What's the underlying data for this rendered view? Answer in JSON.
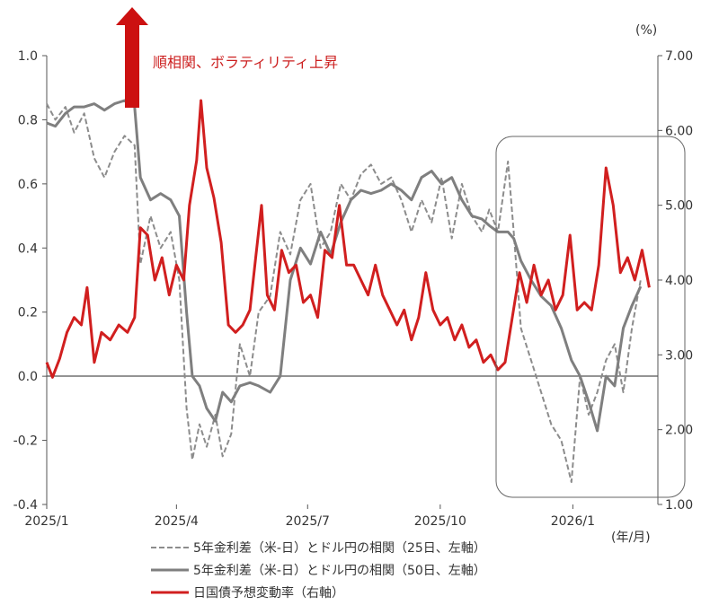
{
  "chart_data": {
    "type": "line",
    "x_ticks": [
      "2025/1",
      "2025/4",
      "2025/7",
      "2025/10",
      "2026/1"
    ],
    "x_unit_label": "(年/月)",
    "y_left": {
      "ticks": [
        "1.0",
        "0.8",
        "0.6",
        "0.4",
        "0.2",
        "0.0",
        "-0.2",
        "-0.4"
      ],
      "range": [
        -0.4,
        1.0
      ]
    },
    "y_right": {
      "unit_label": "(%)",
      "ticks": [
        "7.00",
        "6.00",
        "5.00",
        "4.00",
        "3.00",
        "2.00",
        "1.00"
      ],
      "range": [
        1.0,
        7.0
      ]
    },
    "annotation": "順相関、ボラティリティ上昇",
    "colors": {
      "corr25": "#8c8c8c",
      "corr50": "#7f7f7f",
      "vol": "#d11f1f",
      "arrow": "#cc1111",
      "axis": "#555555"
    },
    "series": [
      {
        "name": "5年金利差（米-日）とドル円の相関（25日、左軸）",
        "axis": "left",
        "style": "dashed",
        "points": [
          [
            "2025-01-01",
            0.85
          ],
          [
            "2025-01-07",
            0.8
          ],
          [
            "2025-01-14",
            0.84
          ],
          [
            "2025-01-20",
            0.76
          ],
          [
            "2025-01-27",
            0.82
          ],
          [
            "2025-02-03",
            0.68
          ],
          [
            "2025-02-10",
            0.62
          ],
          [
            "2025-02-17",
            0.7
          ],
          [
            "2025-02-24",
            0.75
          ],
          [
            "2025-03-03",
            0.72
          ],
          [
            "2025-03-07",
            0.35
          ],
          [
            "2025-03-14",
            0.5
          ],
          [
            "2025-03-21",
            0.4
          ],
          [
            "2025-03-28",
            0.45
          ],
          [
            "2025-04-03",
            0.3
          ],
          [
            "2025-04-08",
            -0.1
          ],
          [
            "2025-04-12",
            -0.26
          ],
          [
            "2025-04-17",
            -0.15
          ],
          [
            "2025-04-22",
            -0.22
          ],
          [
            "2025-04-28",
            -0.12
          ],
          [
            "2025-05-03",
            -0.25
          ],
          [
            "2025-05-09",
            -0.18
          ],
          [
            "2025-05-15",
            0.1
          ],
          [
            "2025-05-22",
            0.0
          ],
          [
            "2025-05-28",
            0.2
          ],
          [
            "2025-06-05",
            0.25
          ],
          [
            "2025-06-12",
            0.45
          ],
          [
            "2025-06-19",
            0.38
          ],
          [
            "2025-06-26",
            0.55
          ],
          [
            "2025-07-03",
            0.6
          ],
          [
            "2025-07-10",
            0.4
          ],
          [
            "2025-07-17",
            0.45
          ],
          [
            "2025-07-24",
            0.6
          ],
          [
            "2025-07-31",
            0.55
          ],
          [
            "2025-08-07",
            0.63
          ],
          [
            "2025-08-14",
            0.66
          ],
          [
            "2025-08-21",
            0.6
          ],
          [
            "2025-08-28",
            0.62
          ],
          [
            "2025-09-04",
            0.55
          ],
          [
            "2025-09-11",
            0.45
          ],
          [
            "2025-09-18",
            0.55
          ],
          [
            "2025-09-25",
            0.48
          ],
          [
            "2025-10-02",
            0.62
          ],
          [
            "2025-10-09",
            0.43
          ],
          [
            "2025-10-16",
            0.6
          ],
          [
            "2025-10-23",
            0.5
          ],
          [
            "2025-10-30",
            0.45
          ],
          [
            "2025-11-04",
            0.52
          ],
          [
            "2025-11-10",
            0.45
          ],
          [
            "2025-11-17",
            0.67
          ],
          [
            "2025-11-21",
            0.45
          ],
          [
            "2025-11-26",
            0.15
          ],
          [
            "2025-12-03",
            0.05
          ],
          [
            "2025-12-10",
            -0.05
          ],
          [
            "2025-12-17",
            -0.15
          ],
          [
            "2025-12-24",
            -0.2
          ],
          [
            "2025-12-31",
            -0.33
          ],
          [
            "2026-01-06",
            0.0
          ],
          [
            "2026-01-12",
            -0.12
          ],
          [
            "2026-01-18",
            -0.05
          ],
          [
            "2026-01-24",
            0.05
          ],
          [
            "2026-01-30",
            0.1
          ],
          [
            "2026-02-05",
            -0.05
          ],
          [
            "2026-02-11",
            0.15
          ],
          [
            "2026-02-17",
            0.3
          ]
        ]
      },
      {
        "name": "5年金利差（米-日）とドル円の相関（50日、左軸）",
        "axis": "left",
        "style": "solid",
        "points": [
          [
            "2025-01-01",
            0.79
          ],
          [
            "2025-01-07",
            0.78
          ],
          [
            "2025-01-14",
            0.82
          ],
          [
            "2025-01-20",
            0.84
          ],
          [
            "2025-01-27",
            0.84
          ],
          [
            "2025-02-03",
            0.85
          ],
          [
            "2025-02-10",
            0.83
          ],
          [
            "2025-02-17",
            0.85
          ],
          [
            "2025-02-24",
            0.86
          ],
          [
            "2025-03-03",
            0.84
          ],
          [
            "2025-03-07",
            0.62
          ],
          [
            "2025-03-14",
            0.55
          ],
          [
            "2025-03-21",
            0.57
          ],
          [
            "2025-03-28",
            0.55
          ],
          [
            "2025-04-03",
            0.5
          ],
          [
            "2025-04-08",
            0.2
          ],
          [
            "2025-04-12",
            0.0
          ],
          [
            "2025-04-17",
            -0.03
          ],
          [
            "2025-04-22",
            -0.1
          ],
          [
            "2025-04-28",
            -0.14
          ],
          [
            "2025-05-03",
            -0.05
          ],
          [
            "2025-05-09",
            -0.08
          ],
          [
            "2025-05-15",
            -0.03
          ],
          [
            "2025-05-22",
            -0.02
          ],
          [
            "2025-05-28",
            -0.03
          ],
          [
            "2025-06-05",
            -0.05
          ],
          [
            "2025-06-12",
            0.0
          ],
          [
            "2025-06-19",
            0.3
          ],
          [
            "2025-06-26",
            0.4
          ],
          [
            "2025-07-03",
            0.35
          ],
          [
            "2025-07-10",
            0.45
          ],
          [
            "2025-07-17",
            0.38
          ],
          [
            "2025-07-24",
            0.48
          ],
          [
            "2025-07-31",
            0.55
          ],
          [
            "2025-08-07",
            0.58
          ],
          [
            "2025-08-14",
            0.57
          ],
          [
            "2025-08-21",
            0.58
          ],
          [
            "2025-08-28",
            0.6
          ],
          [
            "2025-09-04",
            0.58
          ],
          [
            "2025-09-11",
            0.55
          ],
          [
            "2025-09-18",
            0.62
          ],
          [
            "2025-09-25",
            0.64
          ],
          [
            "2025-10-02",
            0.6
          ],
          [
            "2025-10-09",
            0.62
          ],
          [
            "2025-10-16",
            0.55
          ],
          [
            "2025-10-23",
            0.5
          ],
          [
            "2025-10-30",
            0.49
          ],
          [
            "2025-11-04",
            0.47
          ],
          [
            "2025-11-10",
            0.45
          ],
          [
            "2025-11-17",
            0.45
          ],
          [
            "2025-11-21",
            0.43
          ],
          [
            "2025-11-26",
            0.36
          ],
          [
            "2025-12-03",
            0.3
          ],
          [
            "2025-12-10",
            0.25
          ],
          [
            "2025-12-17",
            0.22
          ],
          [
            "2025-12-24",
            0.15
          ],
          [
            "2025-12-31",
            0.05
          ],
          [
            "2026-01-06",
            0.0
          ],
          [
            "2026-01-12",
            -0.08
          ],
          [
            "2026-01-18",
            -0.17
          ],
          [
            "2026-01-24",
            0.0
          ],
          [
            "2026-01-30",
            -0.03
          ],
          [
            "2026-02-05",
            0.15
          ],
          [
            "2026-02-11",
            0.22
          ],
          [
            "2026-02-17",
            0.28
          ]
        ]
      },
      {
        "name": "日国債予想変動率（右軸）",
        "axis": "right",
        "style": "solid",
        "points": [
          [
            "2025-01-01",
            2.9
          ],
          [
            "2025-01-05",
            2.7
          ],
          [
            "2025-01-10",
            2.95
          ],
          [
            "2025-01-15",
            3.3
          ],
          [
            "2025-01-20",
            3.5
          ],
          [
            "2025-01-25",
            3.4
          ],
          [
            "2025-01-29",
            3.9
          ],
          [
            "2025-02-03",
            2.9
          ],
          [
            "2025-02-08",
            3.3
          ],
          [
            "2025-02-14",
            3.2
          ],
          [
            "2025-02-20",
            3.4
          ],
          [
            "2025-02-26",
            3.3
          ],
          [
            "2025-03-03",
            3.5
          ],
          [
            "2025-03-07",
            4.7
          ],
          [
            "2025-03-12",
            4.6
          ],
          [
            "2025-03-17",
            4.0
          ],
          [
            "2025-03-22",
            4.3
          ],
          [
            "2025-03-27",
            3.8
          ],
          [
            "2025-04-01",
            4.2
          ],
          [
            "2025-04-06",
            4.0
          ],
          [
            "2025-04-10",
            5.0
          ],
          [
            "2025-04-15",
            5.6
          ],
          [
            "2025-04-18",
            6.4
          ],
          [
            "2025-04-22",
            5.5
          ],
          [
            "2025-04-27",
            5.1
          ],
          [
            "2025-05-02",
            4.5
          ],
          [
            "2025-05-07",
            3.4
          ],
          [
            "2025-05-12",
            3.3
          ],
          [
            "2025-05-17",
            3.4
          ],
          [
            "2025-05-22",
            3.6
          ],
          [
            "2025-05-26",
            4.3
          ],
          [
            "2025-05-30",
            5.0
          ],
          [
            "2025-06-03",
            3.8
          ],
          [
            "2025-06-08",
            3.6
          ],
          [
            "2025-06-13",
            4.4
          ],
          [
            "2025-06-18",
            4.1
          ],
          [
            "2025-06-23",
            4.2
          ],
          [
            "2025-06-28",
            3.7
          ],
          [
            "2025-07-03",
            3.8
          ],
          [
            "2025-07-08",
            3.5
          ],
          [
            "2025-07-13",
            4.4
          ],
          [
            "2025-07-18",
            4.3
          ],
          [
            "2025-07-23",
            5.0
          ],
          [
            "2025-07-28",
            4.2
          ],
          [
            "2025-08-02",
            4.2
          ],
          [
            "2025-08-07",
            4.0
          ],
          [
            "2025-08-12",
            3.8
          ],
          [
            "2025-08-17",
            4.2
          ],
          [
            "2025-08-22",
            3.8
          ],
          [
            "2025-08-27",
            3.6
          ],
          [
            "2025-09-01",
            3.4
          ],
          [
            "2025-09-06",
            3.6
          ],
          [
            "2025-09-11",
            3.2
          ],
          [
            "2025-09-16",
            3.5
          ],
          [
            "2025-09-21",
            4.1
          ],
          [
            "2025-09-26",
            3.6
          ],
          [
            "2025-10-01",
            3.4
          ],
          [
            "2025-10-06",
            3.5
          ],
          [
            "2025-10-11",
            3.2
          ],
          [
            "2025-10-16",
            3.4
          ],
          [
            "2025-10-21",
            3.1
          ],
          [
            "2025-10-26",
            3.2
          ],
          [
            "2025-10-31",
            2.9
          ],
          [
            "2025-11-05",
            3.0
          ],
          [
            "2025-11-10",
            2.8
          ],
          [
            "2025-11-15",
            2.9
          ],
          [
            "2025-11-20",
            3.5
          ],
          [
            "2025-11-25",
            4.1
          ],
          [
            "2025-11-30",
            3.7
          ],
          [
            "2025-12-05",
            4.2
          ],
          [
            "2025-12-10",
            3.8
          ],
          [
            "2025-12-15",
            4.0
          ],
          [
            "2025-12-20",
            3.6
          ],
          [
            "2025-12-25",
            3.8
          ],
          [
            "2025-12-30",
            4.6
          ],
          [
            "2026-01-04",
            3.6
          ],
          [
            "2026-01-09",
            3.7
          ],
          [
            "2026-01-14",
            3.6
          ],
          [
            "2026-01-19",
            4.2
          ],
          [
            "2026-01-24",
            5.5
          ],
          [
            "2026-01-29",
            5.0
          ],
          [
            "2026-02-03",
            4.1
          ],
          [
            "2026-02-08",
            4.3
          ],
          [
            "2026-02-13",
            4.0
          ],
          [
            "2026-02-18",
            4.4
          ],
          [
            "2026-02-23",
            3.9
          ]
        ]
      }
    ]
  }
}
